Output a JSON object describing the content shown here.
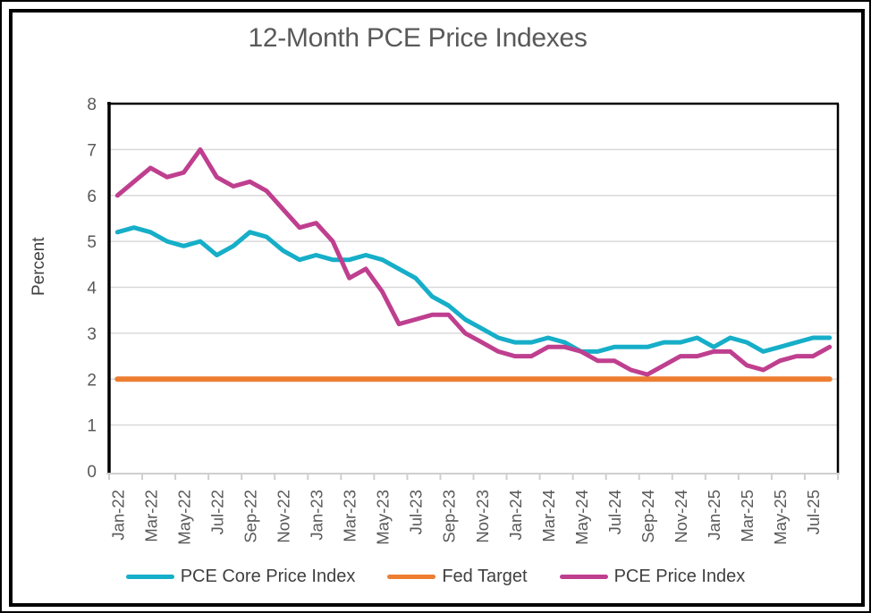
{
  "title": "12-Month PCE Price Indexes",
  "y_axis": {
    "label": "Percent",
    "min": 0,
    "max": 8,
    "tick_interval": 1,
    "tick_labels": [
      "8",
      "7",
      "6",
      "5",
      "4",
      "3",
      "2",
      "1",
      "0"
    ]
  },
  "x_axis": {
    "tick_labels": [
      "Jan-22",
      "Mar-22",
      "May-22",
      "Jul-22",
      "Sep-22",
      "Nov-22",
      "Jan-23",
      "Mar-23",
      "May-23",
      "Jul-23",
      "Sep-23",
      "Nov-23",
      "Jan-24",
      "Mar-24",
      "May-24",
      "Jul-24",
      "Sep-24",
      "Nov-24",
      "Jan-25",
      "Mar-25",
      "May-25",
      "Jul-25"
    ]
  },
  "colors": {
    "pce_core": "#16AEC8",
    "fed_target": "#ED7D31",
    "pce": "#BF3F8F",
    "gridline": "#D9D9D9",
    "axis_line": "#000000",
    "bottom_axis": "#CFCFCF",
    "title_text": "#595959",
    "tick_text": "#595959",
    "legend_text": "#404040"
  },
  "chart_data": {
    "type": "line",
    "title": "12-Month PCE Price Indexes",
    "xlabel": "",
    "ylabel": "Percent",
    "ylim": [
      0,
      8
    ],
    "grid": true,
    "legend_position": "bottom",
    "x": [
      "Jan-22",
      "Feb-22",
      "Mar-22",
      "Apr-22",
      "May-22",
      "Jun-22",
      "Jul-22",
      "Aug-22",
      "Sep-22",
      "Oct-22",
      "Nov-22",
      "Dec-22",
      "Jan-23",
      "Feb-23",
      "Mar-23",
      "Apr-23",
      "May-23",
      "Jun-23",
      "Jul-23",
      "Aug-23",
      "Sep-23",
      "Oct-23",
      "Nov-23",
      "Dec-23",
      "Jan-24",
      "Feb-24",
      "Mar-24",
      "Apr-24",
      "May-24",
      "Jun-24",
      "Jul-24",
      "Aug-24",
      "Sep-24",
      "Oct-24",
      "Nov-24",
      "Dec-24",
      "Jan-25",
      "Feb-25",
      "Mar-25",
      "Apr-25",
      "May-25",
      "Jun-25",
      "Jul-25",
      "Aug-25"
    ],
    "series": [
      {
        "name": "PCE Core Price Index",
        "color": "#16AEC8",
        "values": [
          5.2,
          5.3,
          5.2,
          5.0,
          4.9,
          5.0,
          4.7,
          4.9,
          5.2,
          5.1,
          4.8,
          4.6,
          4.7,
          4.6,
          4.6,
          4.7,
          4.6,
          4.4,
          4.2,
          3.8,
          3.6,
          3.3,
          3.1,
          2.9,
          2.8,
          2.8,
          2.9,
          2.8,
          2.6,
          2.6,
          2.7,
          2.7,
          2.7,
          2.8,
          2.8,
          2.9,
          2.7,
          2.9,
          2.8,
          2.6,
          2.7,
          2.8,
          2.9,
          2.9
        ]
      },
      {
        "name": "Fed Target",
        "color": "#ED7D31",
        "values": [
          2.0,
          2.0,
          2.0,
          2.0,
          2.0,
          2.0,
          2.0,
          2.0,
          2.0,
          2.0,
          2.0,
          2.0,
          2.0,
          2.0,
          2.0,
          2.0,
          2.0,
          2.0,
          2.0,
          2.0,
          2.0,
          2.0,
          2.0,
          2.0,
          2.0,
          2.0,
          2.0,
          2.0,
          2.0,
          2.0,
          2.0,
          2.0,
          2.0,
          2.0,
          2.0,
          2.0,
          2.0,
          2.0,
          2.0,
          2.0,
          2.0,
          2.0,
          2.0,
          2.0
        ]
      },
      {
        "name": "PCE Price Index",
        "color": "#BF3F8F",
        "values": [
          6.0,
          6.3,
          6.6,
          6.4,
          6.5,
          7.0,
          6.4,
          6.2,
          6.3,
          6.1,
          5.7,
          5.3,
          5.4,
          5.0,
          4.2,
          4.4,
          3.9,
          3.2,
          3.3,
          3.4,
          3.4,
          3.0,
          2.8,
          2.6,
          2.5,
          2.5,
          2.7,
          2.7,
          2.6,
          2.4,
          2.4,
          2.2,
          2.1,
          2.3,
          2.5,
          2.5,
          2.6,
          2.6,
          2.3,
          2.2,
          2.4,
          2.5,
          2.5,
          2.7
        ]
      }
    ]
  }
}
